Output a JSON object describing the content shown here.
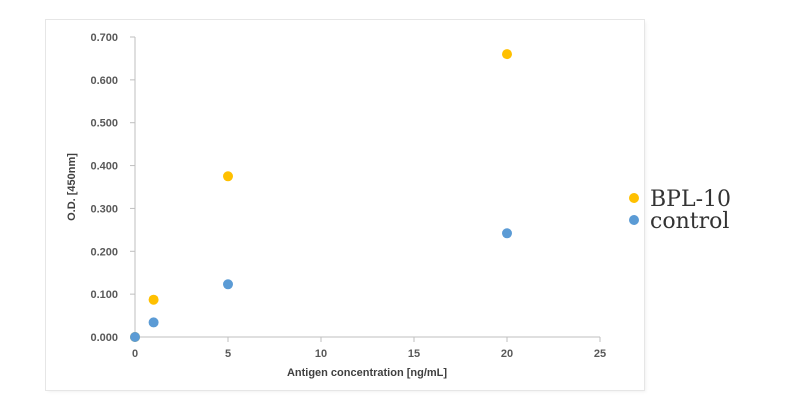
{
  "chart_data": {
    "type": "scatter",
    "xlabel": "Antigen concentration [ng/mL]",
    "ylabel": "O.D. [450nm]",
    "xlim": [
      0,
      25
    ],
    "ylim": [
      0,
      0.7
    ],
    "x_ticks": [
      "0",
      "5",
      "10",
      "15",
      "20",
      "25"
    ],
    "y_ticks": [
      "0.000",
      "0.100",
      "0.200",
      "0.300",
      "0.400",
      "0.500",
      "0.600",
      "0.700"
    ],
    "grid": false,
    "legend_position": "right",
    "series": [
      {
        "name": "BPL-10",
        "color": "#FFC000",
        "points": [
          {
            "x": 0,
            "y": 0.0
          },
          {
            "x": 1,
            "y": 0.087
          },
          {
            "x": 5,
            "y": 0.375
          },
          {
            "x": 20,
            "y": 0.66
          }
        ]
      },
      {
        "name": "control",
        "color": "#5B9BD5",
        "points": [
          {
            "x": 0,
            "y": 0.0
          },
          {
            "x": 1,
            "y": 0.034
          },
          {
            "x": 5,
            "y": 0.123
          },
          {
            "x": 20,
            "y": 0.242
          }
        ]
      }
    ]
  }
}
